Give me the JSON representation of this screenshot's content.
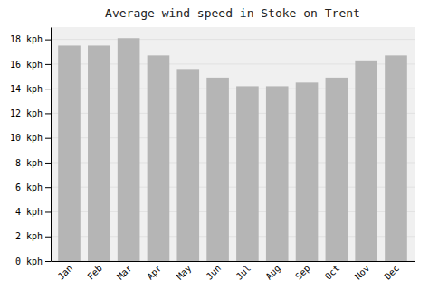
{
  "chart_data": {
    "type": "bar",
    "title": "Average wind speed in Stoke-on-Trent",
    "categories": [
      "Jan",
      "Feb",
      "Mar",
      "Apr",
      "May",
      "Jun",
      "Jul",
      "Aug",
      "Sep",
      "Oct",
      "Nov",
      "Dec"
    ],
    "values": [
      17.5,
      17.5,
      18.1,
      16.7,
      15.6,
      14.9,
      14.2,
      14.2,
      14.5,
      14.9,
      16.3,
      16.7
    ],
    "color": "#b5b5b5",
    "ylim": [
      0,
      19
    ],
    "yticks": [
      {
        "value": 0,
        "label": "0 kph"
      },
      {
        "value": 2,
        "label": "2 kph"
      },
      {
        "value": 4,
        "label": "4 kph"
      },
      {
        "value": 6,
        "label": "6 kph"
      },
      {
        "value": 8,
        "label": "8 kph"
      },
      {
        "value": 10,
        "label": "10 kph"
      },
      {
        "value": 12,
        "label": "12 kph"
      },
      {
        "value": 14,
        "label": "14 kph"
      },
      {
        "value": 16,
        "label": "16 kph"
      },
      {
        "value": 18,
        "label": "18 kph"
      }
    ],
    "grid": true
  }
}
